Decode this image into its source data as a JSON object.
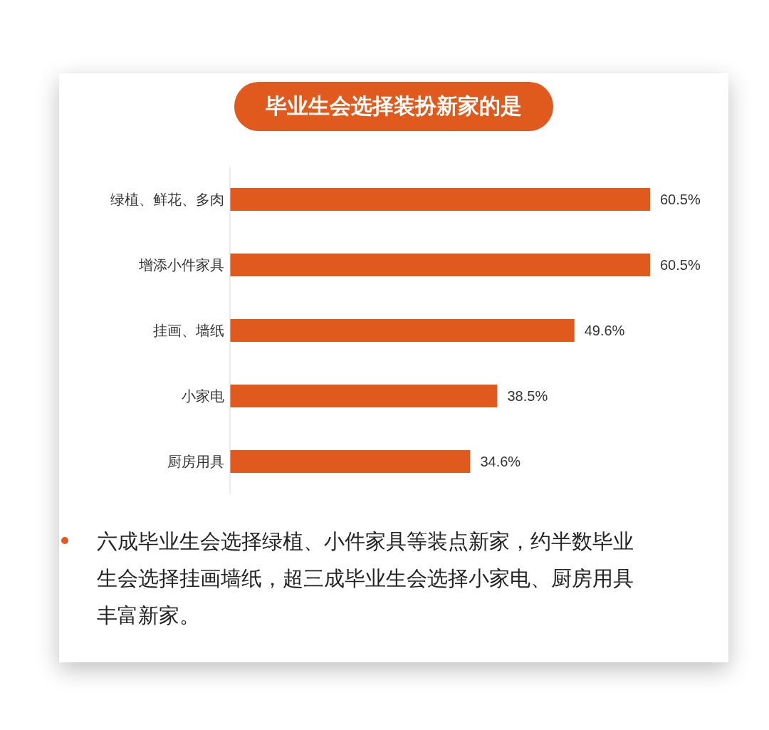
{
  "chart_data": {
    "type": "bar",
    "orientation": "horizontal",
    "title": "毕业生会选择装扮新家的是",
    "categories": [
      "绿植、鲜花、多肉",
      "增添小件家具",
      "挂画、墙纸",
      "小家电",
      "厨房用具"
    ],
    "values": [
      60.5,
      60.5,
      49.6,
      38.5,
      34.6
    ],
    "value_labels": [
      "60.5%",
      "60.5%",
      "49.6%",
      "38.5%",
      "34.6%"
    ],
    "color": "#e05a1e",
    "annotations": [
      "六成毕业生会选择绿植、小件家具等装点新家，约半数毕业生会选择挂画墙纸，超三成毕业生会选择小家电、厨房用具丰富新家。"
    ]
  }
}
